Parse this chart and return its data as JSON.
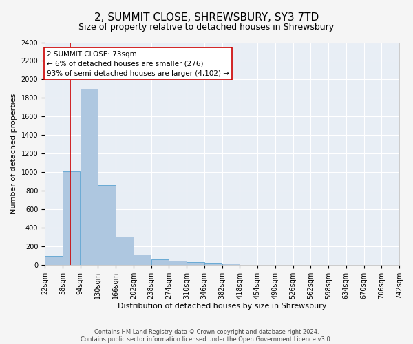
{
  "title": "2, SUMMIT CLOSE, SHREWSBURY, SY3 7TD",
  "subtitle": "Size of property relative to detached houses in Shrewsbury",
  "xlabel": "Distribution of detached houses by size in Shrewsbury",
  "ylabel": "Number of detached properties",
  "bin_edges": [
    22,
    58,
    94,
    130,
    166,
    202,
    238,
    274,
    310,
    346,
    382,
    418,
    454,
    490,
    526,
    562,
    598,
    634,
    670,
    706,
    742
  ],
  "bar_heights": [
    100,
    1010,
    1900,
    860,
    310,
    115,
    60,
    50,
    35,
    25,
    20,
    0,
    0,
    0,
    0,
    0,
    0,
    0,
    0,
    0
  ],
  "bar_color": "#aec7e0",
  "bar_edgecolor": "#6aaad4",
  "vline_x": 73,
  "vline_color": "#cc0000",
  "ylim": [
    0,
    2400
  ],
  "yticks": [
    0,
    200,
    400,
    600,
    800,
    1000,
    1200,
    1400,
    1600,
    1800,
    2000,
    2200,
    2400
  ],
  "annotation_text": "2 SUMMIT CLOSE: 73sqm\n← 6% of detached houses are smaller (276)\n93% of semi-detached houses are larger (4,102) →",
  "annotation_box_facecolor": "#ffffff",
  "annotation_box_edgecolor": "#cc0000",
  "footer_line1": "Contains HM Land Registry data © Crown copyright and database right 2024.",
  "footer_line2": "Contains public sector information licensed under the Open Government Licence v3.0.",
  "background_color": "#e8eef5",
  "grid_color": "#ffffff",
  "fig_facecolor": "#f5f5f5",
  "title_fontsize": 11,
  "subtitle_fontsize": 9,
  "tick_label_fontsize": 7,
  "ylabel_fontsize": 8,
  "xlabel_fontsize": 8,
  "annotation_fontsize": 7.5,
  "footer_fontsize": 6
}
